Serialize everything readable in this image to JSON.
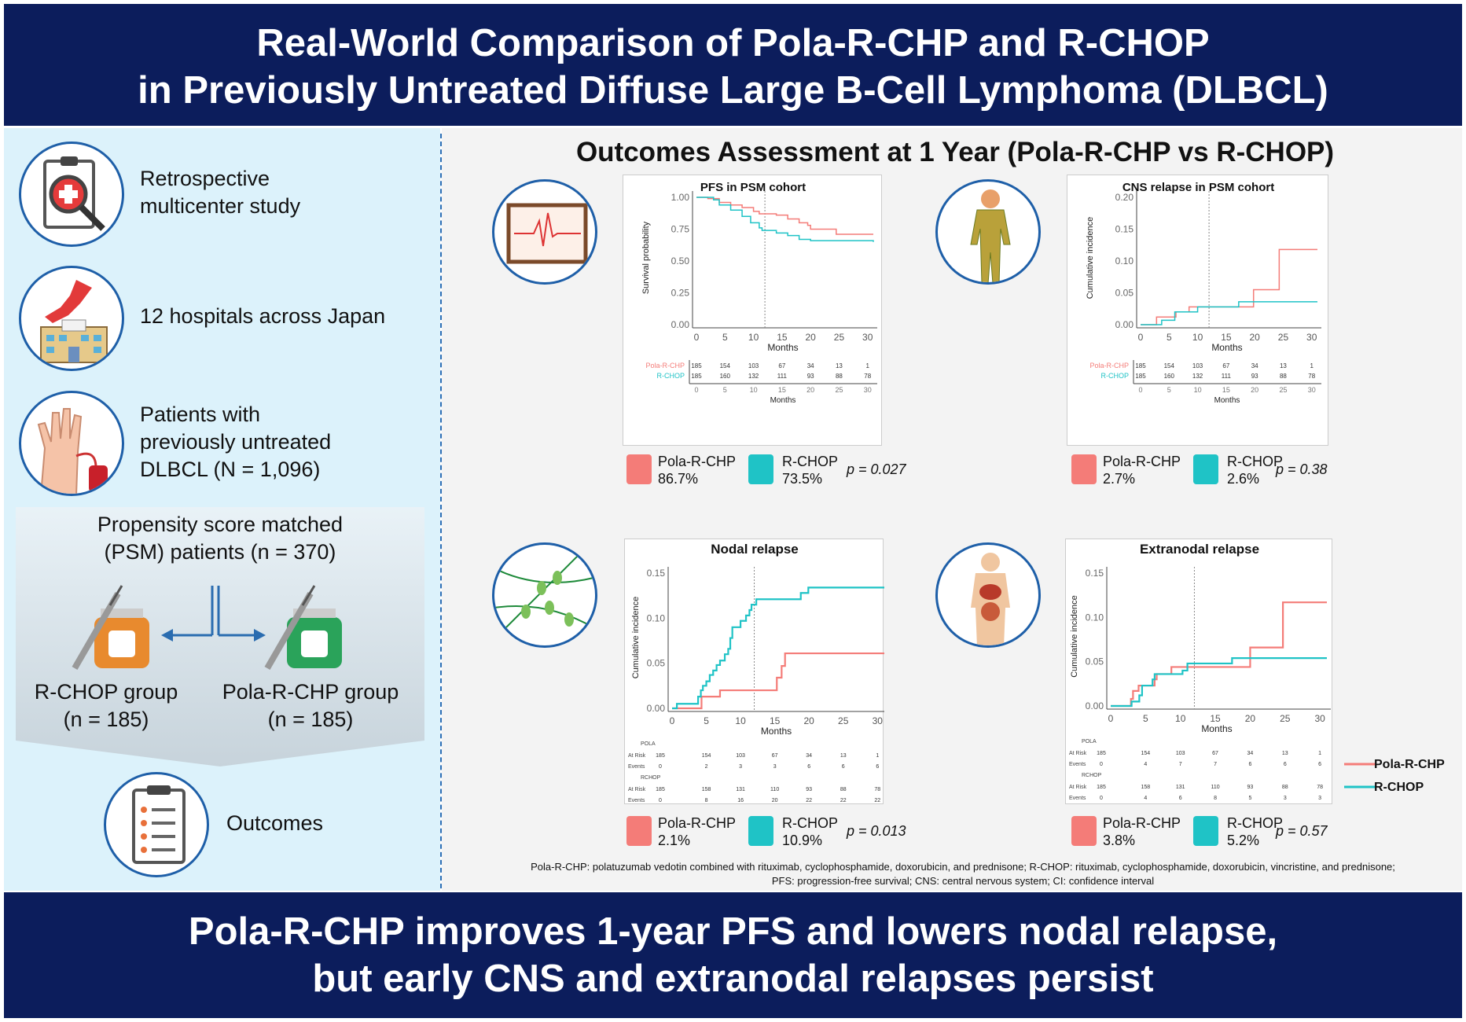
{
  "header": {
    "line1": "Real-World Comparison of Pola-R-CHP and R-CHOP",
    "line2": "in Previously Untreated Diffuse Large B-Cell Lymphoma (DLBCL)"
  },
  "left": {
    "study_line1": "Retrospective",
    "study_line2": "multicenter study",
    "hospitals": "12 hospitals across Japan",
    "patients_line1": "Patients with",
    "patients_line2": "previously untreated",
    "patients_line3": "DLBCL (N = 1,096)",
    "psm_line1": "Propensity score matched",
    "psm_line2": "(PSM) patients (n = 370)",
    "group1_line1": "R-CHOP group",
    "group1_line2": "(n = 185)",
    "group2_line1": "Pola-R-CHP group",
    "group2_line2": "(n = 185)",
    "outcomes": "Outcomes"
  },
  "section_title": "Outcomes Assessment at 1 Year (Pola-R-CHP vs R-CHOP)",
  "colors": {
    "pola": "#f47c78",
    "rchop": "#1fc3c6",
    "navy": "#0c1d5c"
  },
  "legend": {
    "pola": "Pola-R-CHP",
    "rchop": "R-CHOP"
  },
  "results": [
    {
      "pola": "86.7%",
      "rchop": "73.5%",
      "p": "p = 0.027"
    },
    {
      "pola": "2.7%",
      "rchop": "2.6%",
      "p": "p = 0.38"
    },
    {
      "pola": "2.1%",
      "rchop": "10.9%",
      "p": "p = 0.013"
    },
    {
      "pola": "3.8%",
      "rchop": "5.2%",
      "p": "p = 0.57"
    }
  ],
  "chart_data": [
    {
      "type": "line",
      "title": "PFS in PSM cohort",
      "xlabel": "Months",
      "ylabel": "Survival probability",
      "xlim": [
        0,
        31
      ],
      "ylim": [
        0,
        1
      ],
      "xticks": [
        "0",
        "5",
        "10",
        "15",
        "20",
        "25",
        "30"
      ],
      "yticks": [
        "0.00",
        "0.25",
        "0.50",
        "0.75",
        "1.00"
      ],
      "vline": 12,
      "series": [
        {
          "name": "Pola-R-CHP",
          "points": [
            [
              0,
              1
            ],
            [
              2,
              0.99
            ],
            [
              4,
              0.96
            ],
            [
              6,
              0.94
            ],
            [
              8,
              0.92
            ],
            [
              10,
              0.89
            ],
            [
              11,
              0.87
            ],
            [
              14,
              0.86
            ],
            [
              16,
              0.83
            ],
            [
              18,
              0.8
            ],
            [
              19.5,
              0.78
            ],
            [
              20,
              0.75
            ],
            [
              24.5,
              0.71
            ],
            [
              31,
              0.71
            ]
          ]
        },
        {
          "name": "R-CHOP",
          "points": [
            [
              0,
              1
            ],
            [
              3,
              0.98
            ],
            [
              4,
              0.94
            ],
            [
              6,
              0.9
            ],
            [
              8,
              0.85
            ],
            [
              9.5,
              0.8
            ],
            [
              11,
              0.76
            ],
            [
              11.5,
              0.74
            ],
            [
              14,
              0.72
            ],
            [
              16,
              0.7
            ],
            [
              18,
              0.67
            ],
            [
              20,
              0.66
            ],
            [
              31,
              0.65
            ]
          ]
        }
      ],
      "risk_table": {
        "rows": [
          {
            "label": "Pola-R-CHP",
            "values": [
              "185",
              "154",
              "103",
              "67",
              "34",
              "13",
              "1"
            ]
          },
          {
            "label": "R-CHOP",
            "values": [
              "185",
              "160",
              "132",
              "111",
              "93",
              "88",
              "78"
            ]
          }
        ],
        "xlabel": "Months"
      }
    },
    {
      "type": "line",
      "title": "CNS relapse in PSM cohort",
      "xlabel": "Months",
      "ylabel": "Cumulative incidence",
      "xlim": [
        0,
        31
      ],
      "ylim": [
        0,
        0.2
      ],
      "xticks": [
        "0",
        "5",
        "10",
        "15",
        "20",
        "25",
        "30"
      ],
      "yticks": [
        "0.00",
        "0.05",
        "0.10",
        "0.15",
        "0.20"
      ],
      "vline": 12,
      "series": [
        {
          "name": "Pola-R-CHP",
          "points": [
            [
              0,
              0
            ],
            [
              2.8,
              0.012
            ],
            [
              6.2,
              0.02
            ],
            [
              8.5,
              0.028
            ],
            [
              19.8,
              0.055
            ],
            [
              24.3,
              0.118
            ],
            [
              31,
              0.118
            ]
          ]
        },
        {
          "name": "R-CHOP",
          "points": [
            [
              0,
              0
            ],
            [
              3.7,
              0.007
            ],
            [
              6,
              0.02
            ],
            [
              10,
              0.028
            ],
            [
              17.2,
              0.036
            ],
            [
              31,
              0.036
            ]
          ]
        }
      ],
      "risk_table": {
        "rows": [
          {
            "label": "Pola-R-CHP",
            "values": [
              "185",
              "154",
              "103",
              "67",
              "34",
              "13",
              "1"
            ]
          },
          {
            "label": "R-CHOP",
            "values": [
              "185",
              "160",
              "132",
              "111",
              "93",
              "88",
              "78"
            ]
          }
        ],
        "xlabel": "Months"
      }
    },
    {
      "type": "line",
      "title": "Nodal relapse",
      "xlabel": "Months",
      "ylabel": "Cumulative incidence",
      "xlim": [
        0,
        31
      ],
      "ylim": [
        0,
        0.15
      ],
      "xticks": [
        "0",
        "5",
        "10",
        "15",
        "20",
        "25",
        "30"
      ],
      "yticks": [
        "0.00",
        "0.05",
        "0.10",
        "0.15"
      ],
      "vline": 12,
      "series": [
        {
          "name": "Pola-R-CHP",
          "points": [
            [
              0,
              0
            ],
            [
              4.3,
              0.013
            ],
            [
              7,
              0.02
            ],
            [
              15.3,
              0.034
            ],
            [
              16,
              0.047
            ],
            [
              16.5,
              0.061
            ],
            [
              31,
              0.061
            ]
          ]
        },
        {
          "name": "R-CHOP",
          "points": [
            [
              0,
              0
            ],
            [
              0.7,
              0.005
            ],
            [
              3.8,
              0.013
            ],
            [
              4.2,
              0.02
            ],
            [
              4.5,
              0.025
            ],
            [
              5,
              0.03
            ],
            [
              5.5,
              0.037
            ],
            [
              6,
              0.042
            ],
            [
              6.5,
              0.048
            ],
            [
              7,
              0.053
            ],
            [
              7.7,
              0.06
            ],
            [
              8.2,
              0.066
            ],
            [
              8.5,
              0.078
            ],
            [
              8.8,
              0.09
            ],
            [
              10,
              0.097
            ],
            [
              10.8,
              0.103
            ],
            [
              11.3,
              0.109
            ],
            [
              11.6,
              0.115
            ],
            [
              12.3,
              0.121
            ],
            [
              18.8,
              0.128
            ],
            [
              19.9,
              0.134
            ],
            [
              31,
              0.134
            ]
          ]
        }
      ],
      "risk_table": {
        "groups": [
          {
            "name": "POLA",
            "rows": [
              {
                "label": "At Risk",
                "values": [
                  "185",
                  "154",
                  "103",
                  "67",
                  "34",
                  "13",
                  "1"
                ]
              },
              {
                "label": "Events",
                "values": [
                  "0",
                  "2",
                  "3",
                  "3",
                  "6",
                  "6",
                  "6"
                ]
              }
            ]
          },
          {
            "name": "RCHOP",
            "rows": [
              {
                "label": "At Risk",
                "values": [
                  "185",
                  "158",
                  "131",
                  "110",
                  "93",
                  "88",
                  "78"
                ]
              },
              {
                "label": "Events",
                "values": [
                  "0",
                  "8",
                  "16",
                  "20",
                  "22",
                  "22",
                  "22"
                ]
              }
            ]
          }
        ]
      }
    },
    {
      "type": "line",
      "title": "Extranodal relapse",
      "xlabel": "Months",
      "ylabel": "Cumulative incidence",
      "xlim": [
        0,
        31
      ],
      "ylim": [
        0,
        0.15
      ],
      "xticks": [
        "0",
        "5",
        "10",
        "15",
        "20",
        "25",
        "30"
      ],
      "yticks": [
        "0.00",
        "0.05",
        "0.10",
        "0.15"
      ],
      "vline": 12,
      "series": [
        {
          "name": "Pola-R-CHP",
          "points": [
            [
              0,
              0
            ],
            [
              2.9,
              0.008
            ],
            [
              3.2,
              0.017
            ],
            [
              4,
              0.023
            ],
            [
              6.3,
              0.03
            ],
            [
              6.6,
              0.036
            ],
            [
              8.7,
              0.044
            ],
            [
              20,
              0.066
            ],
            [
              24.7,
              0.117
            ],
            [
              31,
              0.117
            ]
          ]
        },
        {
          "name": "R-CHOP",
          "points": [
            [
              0,
              0
            ],
            [
              3,
              0.005
            ],
            [
              4.1,
              0.012
            ],
            [
              4.5,
              0.023
            ],
            [
              6,
              0.03
            ],
            [
              6.3,
              0.036
            ],
            [
              10.3,
              0.04
            ],
            [
              11,
              0.048
            ],
            [
              17.4,
              0.054
            ],
            [
              31,
              0.054
            ]
          ]
        }
      ],
      "risk_table": {
        "groups": [
          {
            "name": "POLA",
            "rows": [
              {
                "label": "At Risk",
                "values": [
                  "185",
                  "154",
                  "103",
                  "67",
                  "34",
                  "13",
                  "1"
                ]
              },
              {
                "label": "Events",
                "values": [
                  "0",
                  "4",
                  "7",
                  "7",
                  "6",
                  "6",
                  "6"
                ]
              }
            ]
          },
          {
            "name": "RCHOP",
            "rows": [
              {
                "label": "At Risk",
                "values": [
                  "185",
                  "158",
                  "131",
                  "110",
                  "93",
                  "88",
                  "78"
                ]
              },
              {
                "label": "Events",
                "values": [
                  "0",
                  "4",
                  "6",
                  "8",
                  "5",
                  "3",
                  "3"
                ]
              }
            ]
          }
        ]
      }
    }
  ],
  "footnote_line1": "Pola-R-CHP: polatuzumab vedotin combined with rituximab, cyclophosphamide, doxorubicin, and prednisone; R-CHOP: rituximab, cyclophosphamide, doxorubicin, vincristine, and prednisone;",
  "footnote_line2": "PFS: progression-free survival; CNS: central nervous system; CI: confidence interval",
  "footer": {
    "line1": "Pola-R-CHP improves 1-year PFS and lowers nodal relapse,",
    "line2": "but early CNS and extranodal relapses persist"
  }
}
